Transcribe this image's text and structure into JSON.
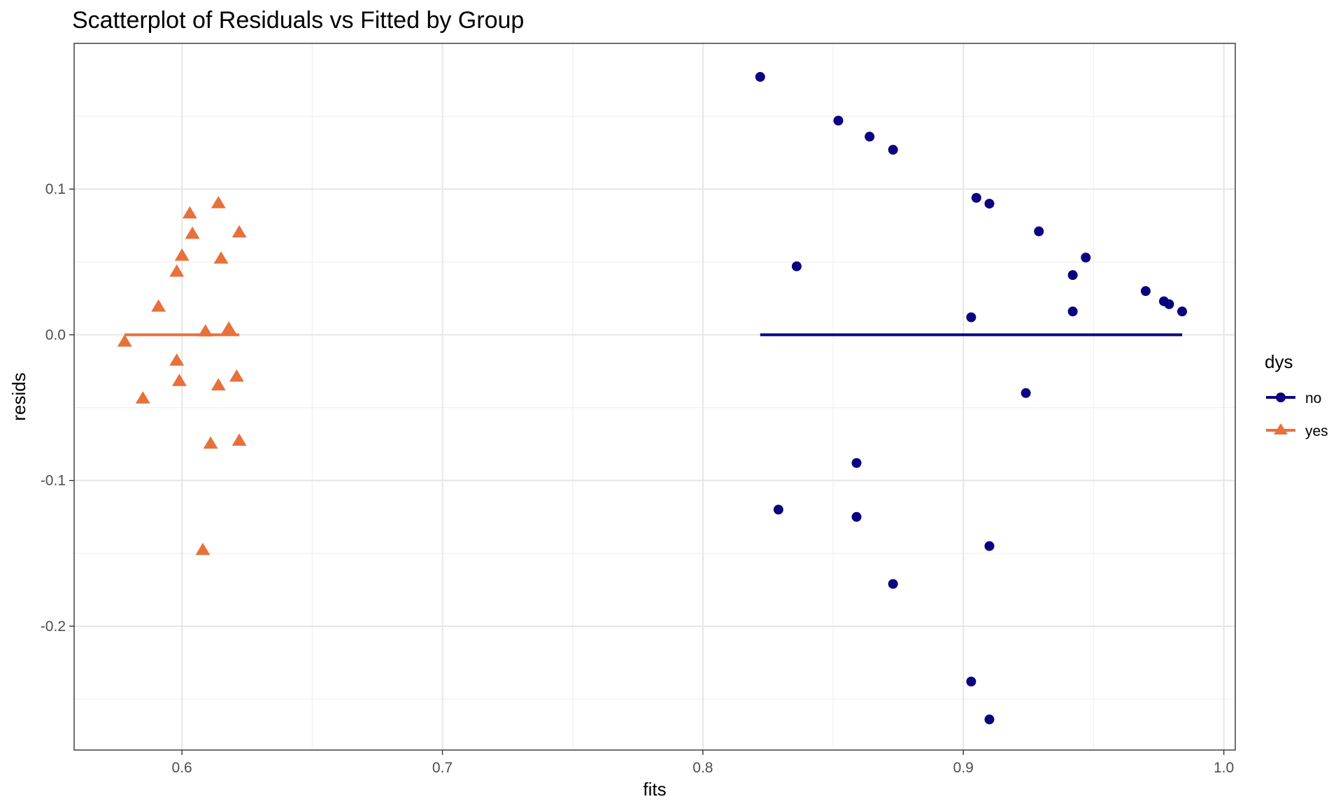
{
  "chart_data": {
    "type": "scatter",
    "title": "Scatterplot of Residuals vs Fitted by Group",
    "xlabel": "fits",
    "ylabel": "resids",
    "xlim": [
      0.5586,
      1.0044
    ],
    "ylim": [
      -0.285,
      0.2
    ],
    "x_ticks": [
      0.6,
      0.7,
      0.8,
      0.9,
      1.0
    ],
    "x_tick_labels": [
      "0.6",
      "0.7",
      "0.8",
      "0.9",
      "1.0"
    ],
    "y_ticks": [
      -0.2,
      -0.1,
      0.0,
      0.1
    ],
    "y_tick_labels": [
      "-0.2",
      "-0.1",
      "0.0",
      "0.1"
    ],
    "grid": true,
    "legend": {
      "title": "dys",
      "position": "right"
    },
    "series": [
      {
        "name": "no",
        "marker": "circle",
        "color": "#0c0080",
        "points": [
          [
            0.822,
            0.177
          ],
          [
            0.852,
            0.147
          ],
          [
            0.864,
            0.136
          ],
          [
            0.873,
            0.127
          ],
          [
            0.905,
            0.094
          ],
          [
            0.91,
            0.09
          ],
          [
            0.929,
            0.071
          ],
          [
            0.836,
            0.047
          ],
          [
            0.947,
            0.053
          ],
          [
            0.942,
            0.041
          ],
          [
            0.97,
            0.03
          ],
          [
            0.977,
            0.023
          ],
          [
            0.979,
            0.021
          ],
          [
            0.984,
            0.016
          ],
          [
            0.942,
            0.016
          ],
          [
            0.903,
            0.012
          ],
          [
            0.924,
            -0.04
          ],
          [
            0.859,
            -0.088
          ],
          [
            0.829,
            -0.12
          ],
          [
            0.859,
            -0.125
          ],
          [
            0.91,
            -0.145
          ],
          [
            0.873,
            -0.171
          ],
          [
            0.903,
            -0.238
          ],
          [
            0.91,
            -0.264
          ]
        ],
        "fit_line": {
          "x": [
            0.822,
            0.984
          ],
          "y": [
            0.0,
            0.0
          ]
        }
      },
      {
        "name": "yes",
        "marker": "triangle",
        "color": "#e8703a",
        "points": [
          [
            0.614,
            0.09
          ],
          [
            0.603,
            0.083
          ],
          [
            0.604,
            0.069
          ],
          [
            0.622,
            0.07
          ],
          [
            0.6,
            0.054
          ],
          [
            0.615,
            0.052
          ],
          [
            0.598,
            0.043
          ],
          [
            0.591,
            0.019
          ],
          [
            0.618,
            0.004
          ],
          [
            0.609,
            0.002
          ],
          [
            0.578,
            -0.005
          ],
          [
            0.598,
            -0.018
          ],
          [
            0.621,
            -0.029
          ],
          [
            0.599,
            -0.032
          ],
          [
            0.614,
            -0.035
          ],
          [
            0.585,
            -0.044
          ],
          [
            0.622,
            -0.073
          ],
          [
            0.611,
            -0.075
          ],
          [
            0.608,
            -0.148
          ]
        ],
        "fit_line": {
          "x": [
            0.578,
            0.622
          ],
          "y": [
            0.0,
            0.0
          ]
        }
      }
    ]
  }
}
